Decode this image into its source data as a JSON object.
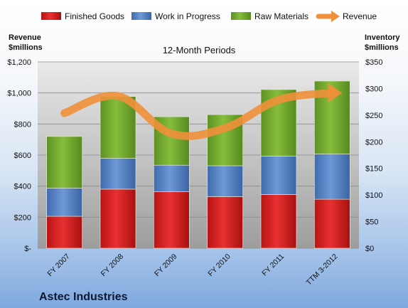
{
  "chart_data": {
    "type": "bar",
    "title": "12-Month Periods",
    "company": "Astec Industries",
    "left_axis_label": [
      "Revenue",
      "$millions"
    ],
    "right_axis_label": [
      "Inventory",
      "$millions"
    ],
    "categories": [
      "FY 2007",
      "FY 2008",
      "FY 2009",
      "FY 2010",
      "FY 2011",
      "TTM 3-2012"
    ],
    "inventory_axis": {
      "min": 0,
      "max": 350,
      "step": 50,
      "tick_labels": [
        "$0",
        "$50",
        "$100",
        "$150",
        "$200",
        "$250",
        "$300",
        "$350"
      ]
    },
    "revenue_axis": {
      "min": 0,
      "max": 1200,
      "step": 200,
      "tick_labels": [
        "$-",
        "$200",
        "$400",
        "$600",
        "$800",
        "$1,000",
        "$1,200"
      ]
    },
    "series": [
      {
        "name": "Finished Goods",
        "color": "#e02020",
        "values": [
          60,
          111,
          106,
          97,
          101,
          92
        ]
      },
      {
        "name": "Work in Progress",
        "color": "#4a7ec8",
        "values": [
          53,
          58,
          50,
          58,
          72,
          85
        ]
      },
      {
        "name": "Raw Materials",
        "color": "#6faa2a",
        "values": [
          97,
          116,
          91,
          96,
          125,
          137
        ]
      }
    ],
    "line_series": {
      "name": "Revenue",
      "color": "#f0903a",
      "values": [
        870,
        980,
        738,
        774,
        955,
        1000
      ]
    },
    "legend": {
      "position": "top"
    }
  }
}
